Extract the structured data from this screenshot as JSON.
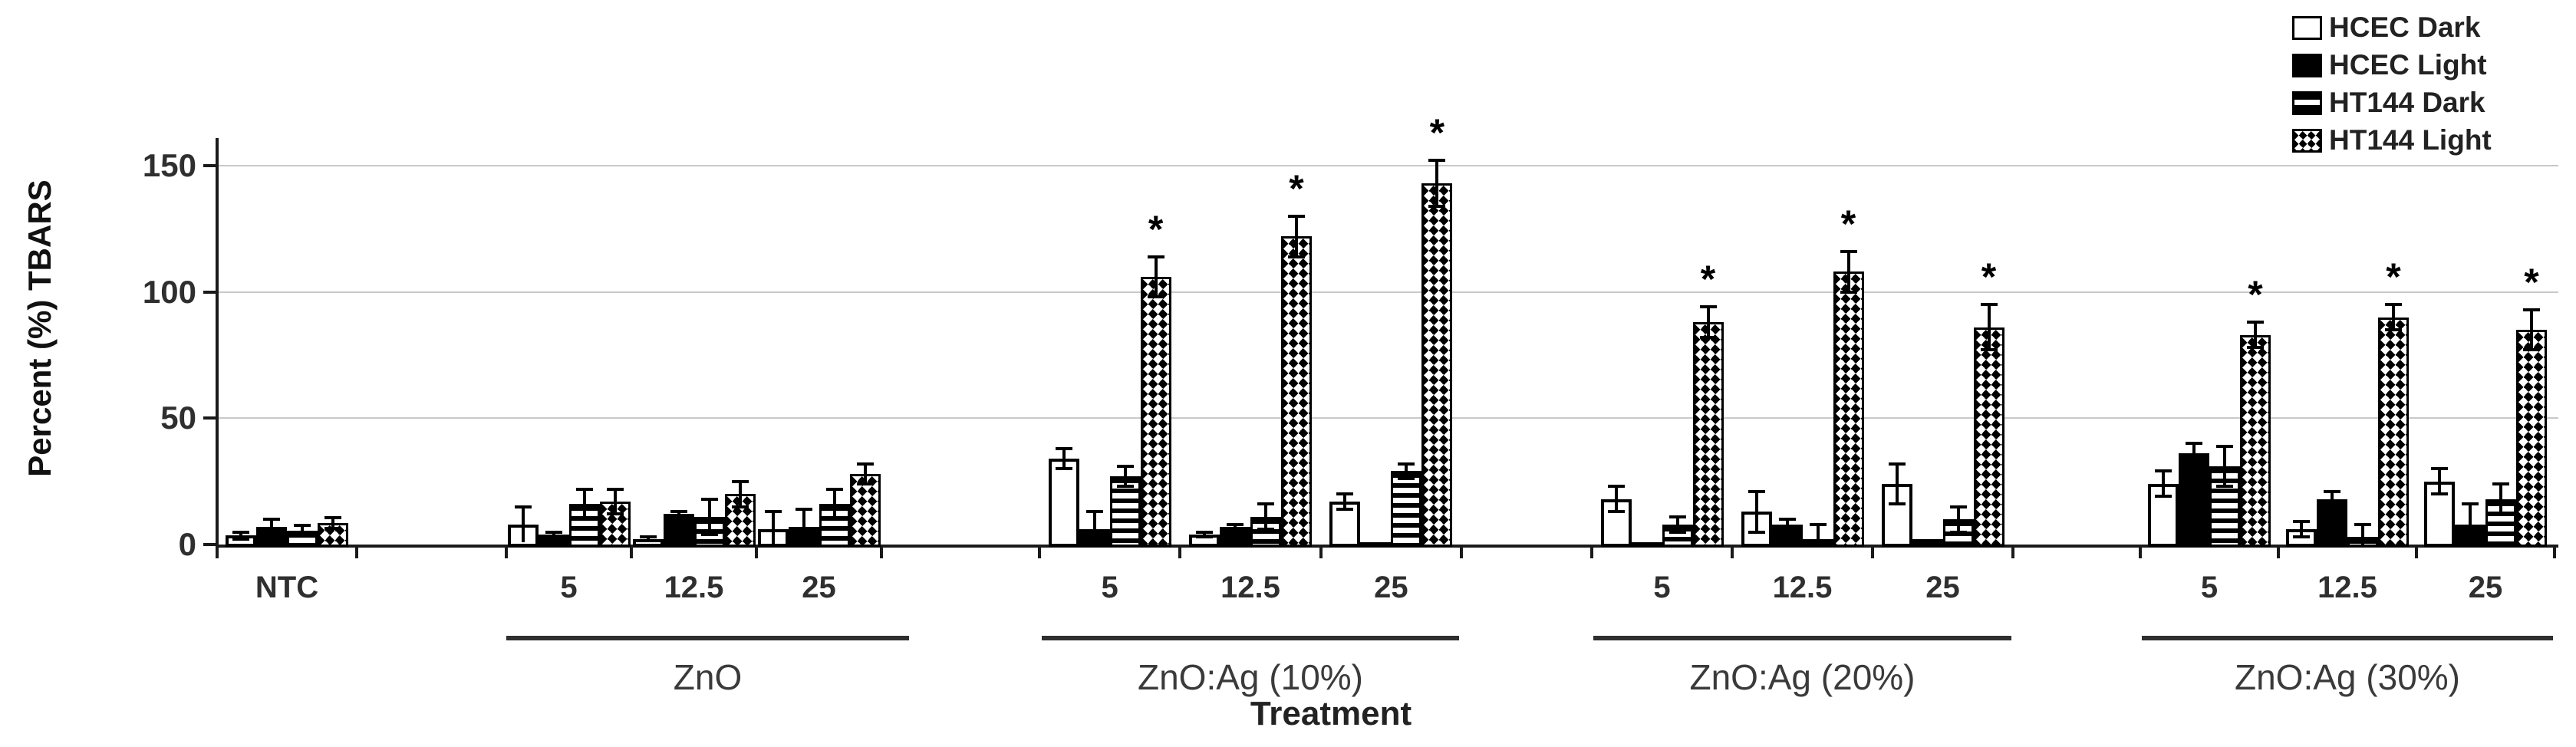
{
  "chart_data": {
    "type": "bar",
    "title": "",
    "ylabel": "Percent (%) TBARS",
    "xlabel": "Treatment",
    "ylim": [
      0,
      150
    ],
    "yticks": [
      0,
      50,
      100,
      150
    ],
    "grid": "horizontal",
    "legend_position": "top-right",
    "significance_marker": "*",
    "series": [
      "HCEC Dark",
      "HCEC Light",
      "HT144 Dark",
      "HT144 Light"
    ],
    "legend": [
      {
        "label": "HCEC Dark",
        "pattern": "open-white"
      },
      {
        "label": "HCEC Light",
        "pattern": "solid-black"
      },
      {
        "label": "HT144 Dark",
        "pattern": "horizontal-stripes"
      },
      {
        "label": "HT144 Light",
        "pattern": "checkerboard"
      }
    ],
    "groups": [
      {
        "group_title": "",
        "underline": false,
        "categories": [
          "NTC"
        ],
        "values": [
          [
            3.5,
            7,
            5.5,
            8.5
          ]
        ],
        "errors": [
          [
            1.5,
            3,
            2,
            2
          ]
        ],
        "significant": [
          [
            false,
            false,
            false,
            false
          ]
        ]
      },
      {
        "group_title": "ZnO",
        "underline": true,
        "categories": [
          "5",
          "12.5",
          "25"
        ],
        "values": [
          [
            8,
            4,
            16,
            17
          ],
          [
            2,
            12,
            11,
            20
          ],
          [
            6,
            7,
            16,
            28
          ]
        ],
        "errors": [
          [
            7,
            1,
            6,
            5
          ],
          [
            1,
            1,
            7,
            5
          ],
          [
            7,
            7,
            6,
            4
          ]
        ],
        "significant": [
          [
            false,
            false,
            false,
            false
          ],
          [
            false,
            false,
            false,
            false
          ],
          [
            false,
            false,
            false,
            false
          ]
        ]
      },
      {
        "group_title": "ZnO:Ag (10%)",
        "underline": true,
        "categories": [
          "5",
          "12.5",
          "25"
        ],
        "values": [
          [
            34,
            6,
            27,
            106
          ],
          [
            4,
            7,
            11,
            122
          ],
          [
            17,
            1,
            29,
            143
          ]
        ],
        "errors": [
          [
            4,
            7,
            4,
            8
          ],
          [
            1,
            1,
            5,
            8
          ],
          [
            3,
            0,
            3,
            9
          ]
        ],
        "significant": [
          [
            false,
            false,
            false,
            true
          ],
          [
            false,
            false,
            false,
            true
          ],
          [
            false,
            false,
            false,
            true
          ]
        ]
      },
      {
        "group_title": "ZnO:Ag (20%)",
        "underline": true,
        "categories": [
          "5",
          "12.5",
          "25"
        ],
        "values": [
          [
            18,
            1,
            8,
            88
          ],
          [
            13,
            8,
            2,
            108
          ],
          [
            24,
            2,
            10,
            86
          ]
        ],
        "errors": [
          [
            5,
            0,
            3,
            6
          ],
          [
            8,
            2,
            6,
            8
          ],
          [
            8,
            0,
            5,
            9
          ]
        ],
        "significant": [
          [
            false,
            false,
            false,
            true
          ],
          [
            false,
            false,
            false,
            true
          ],
          [
            false,
            false,
            false,
            true
          ]
        ]
      },
      {
        "group_title": "ZnO:Ag (30%)",
        "underline": true,
        "categories": [
          "5",
          "12.5",
          "25"
        ],
        "values": [
          [
            24,
            36,
            31,
            83
          ],
          [
            6,
            18,
            3,
            90
          ],
          [
            25,
            8,
            18,
            85
          ]
        ],
        "errors": [
          [
            5,
            4,
            8,
            5
          ],
          [
            3,
            3,
            5,
            5
          ],
          [
            5,
            8,
            6,
            8
          ]
        ],
        "significant": [
          [
            false,
            false,
            false,
            true
          ],
          [
            false,
            false,
            false,
            true
          ],
          [
            false,
            false,
            false,
            true
          ]
        ]
      }
    ],
    "colors": {
      "bar_outline": "#000000",
      "gridline": "#c9c9c9",
      "text": "#2f2f2f"
    }
  }
}
